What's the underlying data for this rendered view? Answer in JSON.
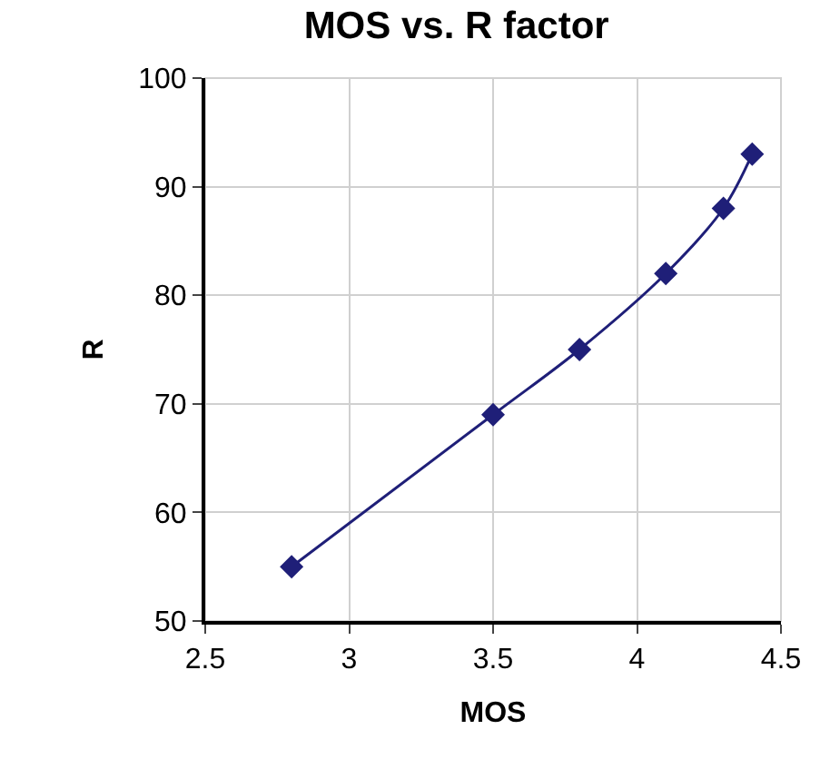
{
  "chart_data": {
    "type": "line",
    "title": "MOS vs. R factor",
    "xlabel": "MOS",
    "ylabel": "R",
    "x": [
      2.8,
      3.5,
      3.8,
      4.1,
      4.3,
      4.4
    ],
    "series": [
      {
        "color": "#1f1f78",
        "values": [
          55,
          69,
          75,
          82,
          88,
          93
        ]
      }
    ],
    "xlim": [
      2.5,
      4.5
    ],
    "xticks": [
      2.5,
      3,
      3.5,
      4,
      4.5
    ],
    "ylim": [
      50,
      100
    ],
    "yticks": [
      50,
      60,
      70,
      80,
      90,
      100
    ],
    "grid": true,
    "legend": false,
    "marker": "diamond",
    "line_style": "solid"
  }
}
